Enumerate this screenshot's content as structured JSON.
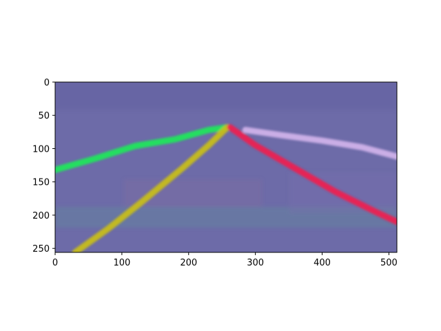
{
  "chart_data": {
    "type": "heatmap",
    "title": "",
    "xlabel": "",
    "ylabel": "",
    "xlim": [
      0,
      512
    ],
    "ylim": [
      256,
      0
    ],
    "x_ticks": [
      0,
      100,
      200,
      300,
      400,
      500
    ],
    "y_ticks": [
      0,
      50,
      100,
      150,
      200,
      250
    ],
    "x_tick_labels": [
      "0",
      "100",
      "200",
      "300",
      "400",
      "500"
    ],
    "y_tick_labels": [
      "0",
      "50",
      "100",
      "150",
      "200",
      "250"
    ],
    "grid": false,
    "background_color": "#6d6ba8",
    "lines": [
      {
        "color": "#1ee85a",
        "points": [
          [
            0,
            132
          ],
          [
            60,
            115
          ],
          [
            120,
            96
          ],
          [
            180,
            86
          ],
          [
            230,
            72
          ],
          [
            258,
            68
          ]
        ]
      },
      {
        "color": "#c9bf1a",
        "points": [
          [
            30,
            256
          ],
          [
            80,
            220
          ],
          [
            130,
            180
          ],
          [
            190,
            130
          ],
          [
            230,
            95
          ],
          [
            258,
            68
          ]
        ]
      },
      {
        "color": "#f0204e",
        "points": [
          [
            262,
            68
          ],
          [
            300,
            95
          ],
          [
            360,
            130
          ],
          [
            420,
            165
          ],
          [
            480,
            195
          ],
          [
            512,
            210
          ]
        ]
      },
      {
        "color": "#d2b4ec",
        "points": [
          [
            285,
            72
          ],
          [
            340,
            80
          ],
          [
            400,
            88
          ],
          [
            460,
            98
          ],
          [
            512,
            112
          ]
        ]
      }
    ]
  }
}
